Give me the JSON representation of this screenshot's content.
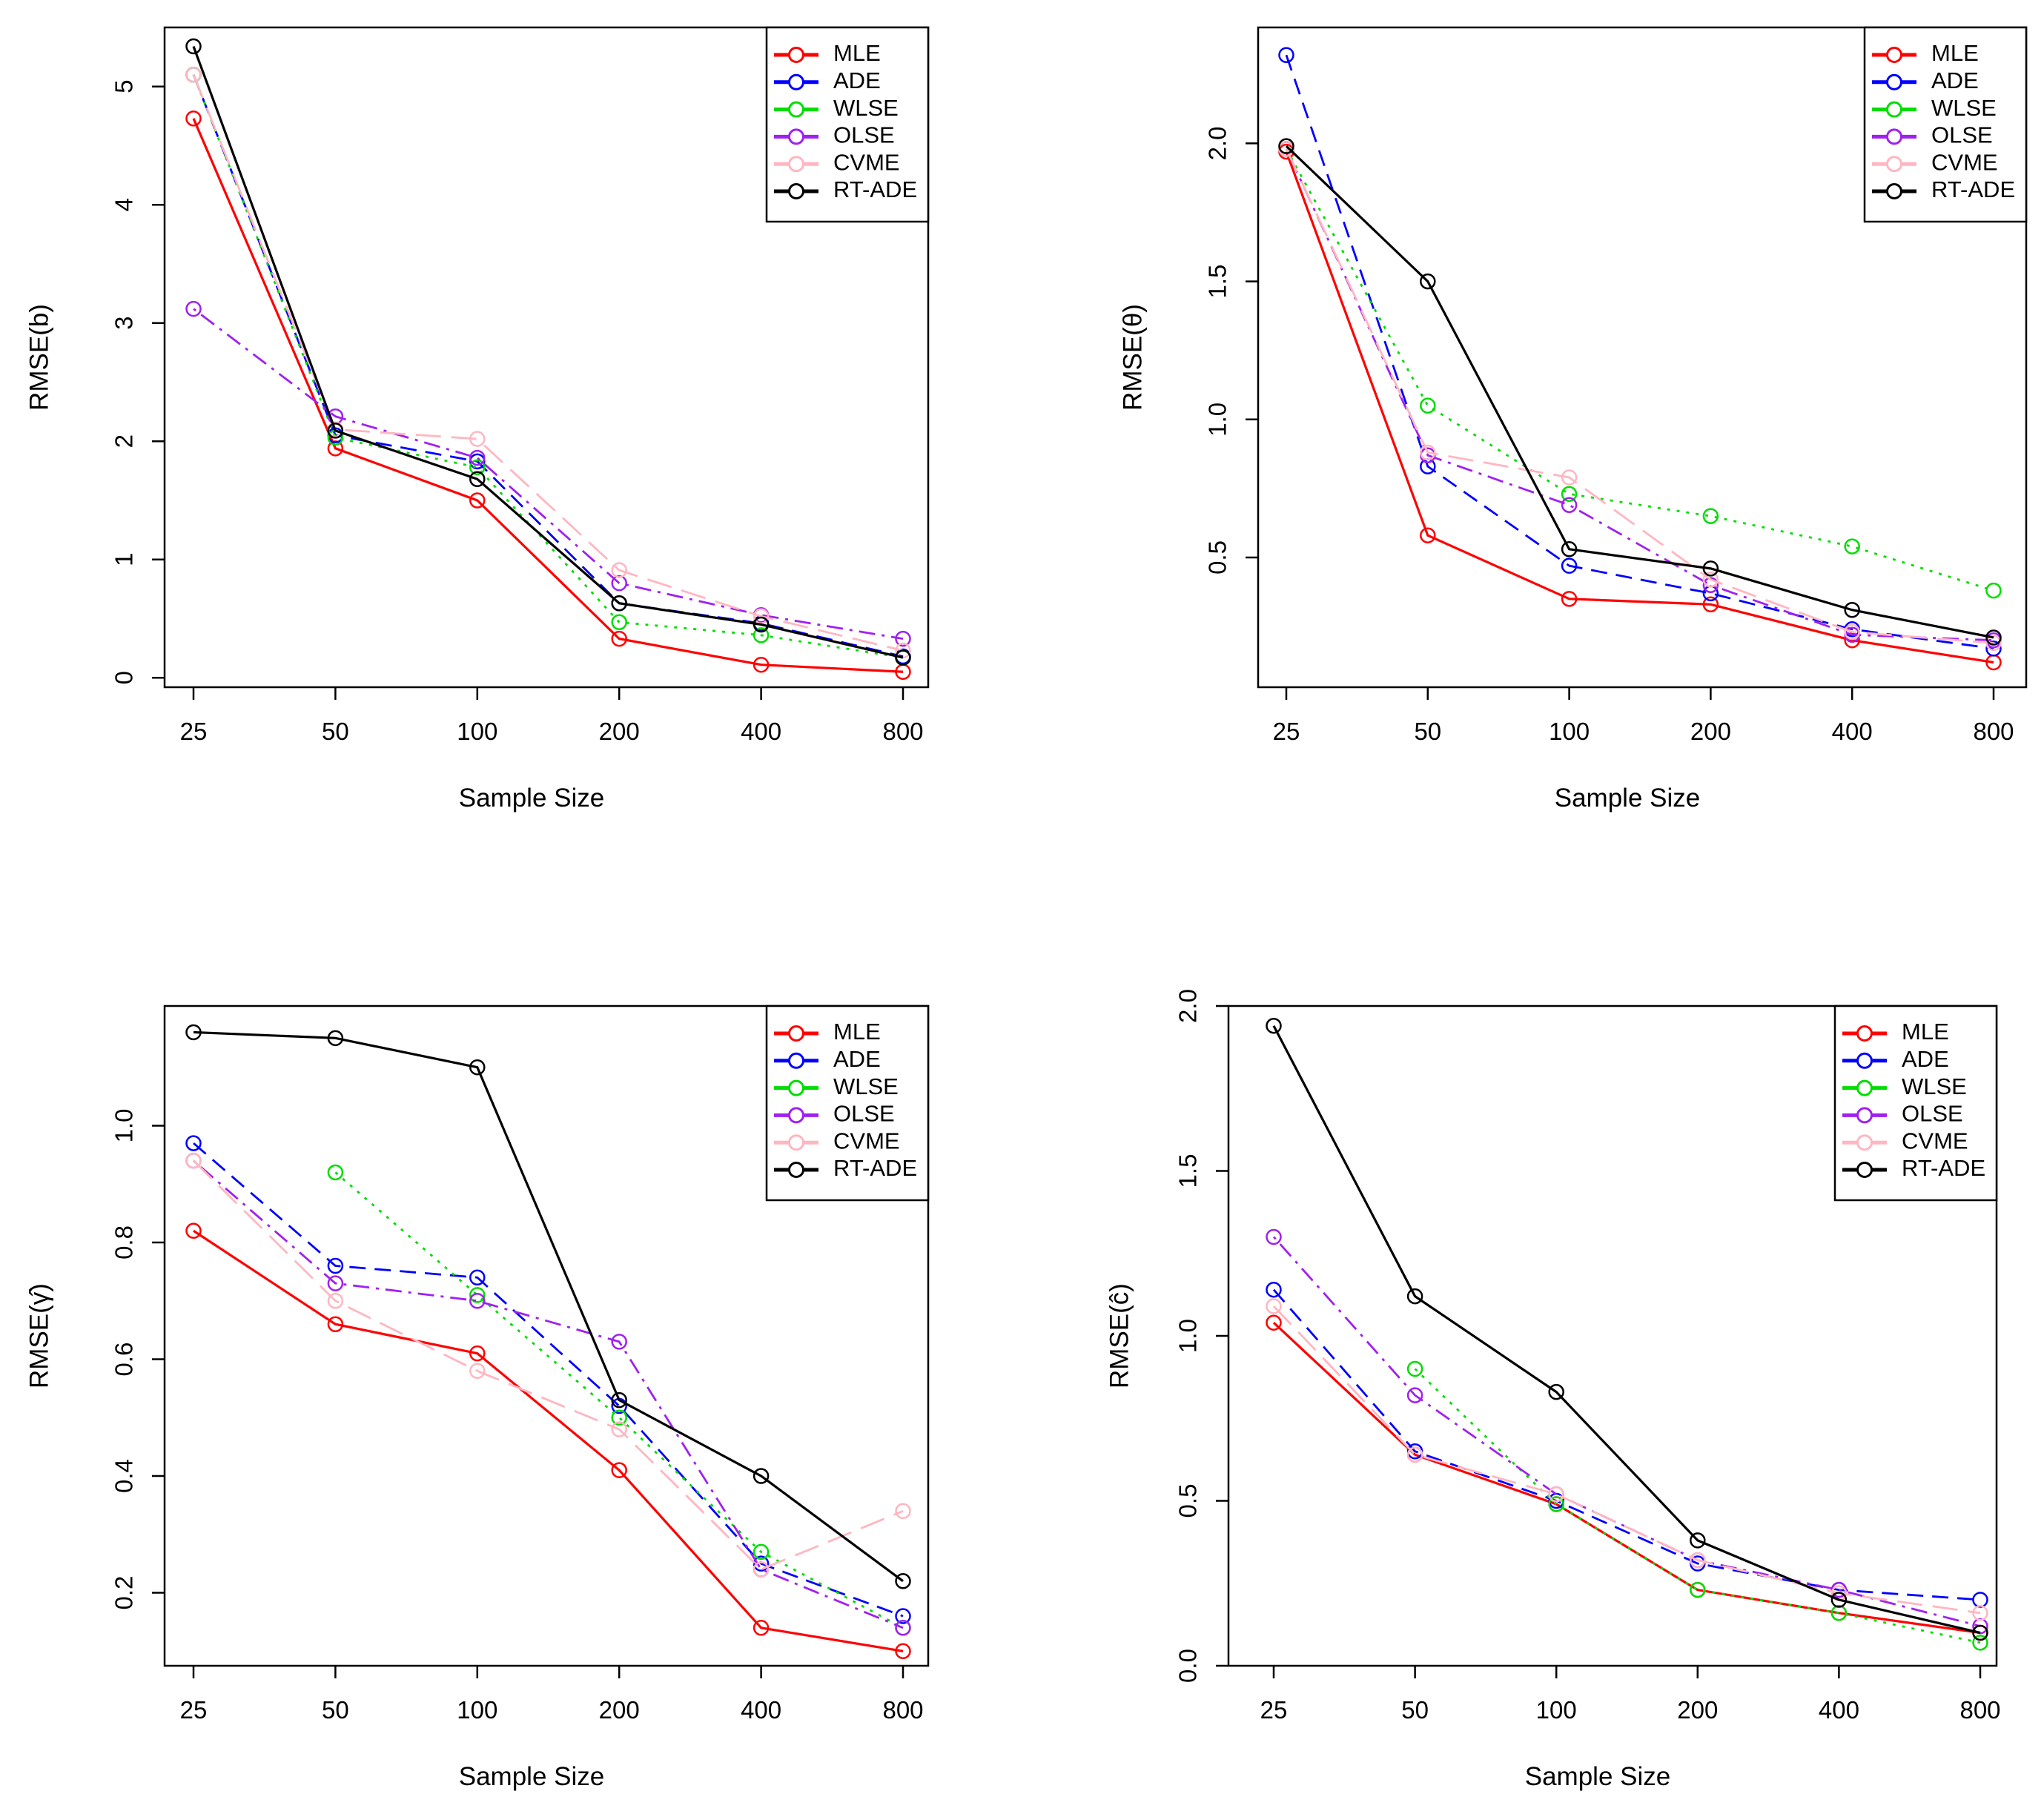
{
  "chart_data": [
    {
      "type": "line",
      "title": "",
      "xlabel": "Sample Size",
      "ylabel": "RMSE(b)",
      "categories": [
        "25",
        "50",
        "100",
        "200",
        "400",
        "800"
      ],
      "ylim": [
        -0.08,
        5.5
      ],
      "yticks": [
        "0",
        "1",
        "2",
        "3",
        "4",
        "5"
      ],
      "ytick_values": [
        0,
        1,
        2,
        3,
        4,
        5
      ],
      "legend_position": "top-right",
      "series": [
        {
          "name": "MLE",
          "color": "#ff0000",
          "dash": "solid",
          "values": [
            4.73,
            1.94,
            1.5,
            0.33,
            0.11,
            0.05
          ]
        },
        {
          "name": "ADE",
          "color": "#0000ff",
          "dash": "dashed",
          "values": [
            5.1,
            2.05,
            1.83,
            0.63,
            0.46,
            0.18
          ]
        },
        {
          "name": "WLSE",
          "color": "#00dd00",
          "dash": "dotted",
          "values": [
            5.1,
            2.03,
            1.78,
            0.47,
            0.36,
            0.17
          ]
        },
        {
          "name": "OLSE",
          "color": "#a020f0",
          "dash": "dotdash",
          "values": [
            3.12,
            2.21,
            1.86,
            0.8,
            0.53,
            0.33
          ]
        },
        {
          "name": "CVME",
          "color": "#ffb6c1",
          "dash": "longdash",
          "values": [
            5.1,
            2.1,
            2.02,
            0.91,
            0.52,
            0.23
          ]
        },
        {
          "name": "RT-ADE",
          "color": "#000000",
          "dash": "solid",
          "values": [
            5.34,
            2.09,
            1.68,
            0.63,
            0.45,
            0.17
          ]
        }
      ]
    },
    {
      "type": "line",
      "title": "",
      "xlabel": "Sample Size",
      "ylabel": "RMSE(θ)",
      "categories": [
        "25",
        "50",
        "100",
        "200",
        "400",
        "800"
      ],
      "ylim": [
        0.03,
        2.42
      ],
      "yticks": [
        "0.5",
        "1.0",
        "1.5",
        "2.0"
      ],
      "ytick_values": [
        0.5,
        1.0,
        1.5,
        2.0
      ],
      "legend_position": "top-right",
      "series": [
        {
          "name": "MLE",
          "color": "#ff0000",
          "dash": "solid",
          "values": [
            1.97,
            0.58,
            0.35,
            0.33,
            0.2,
            0.12
          ]
        },
        {
          "name": "ADE",
          "color": "#0000ff",
          "dash": "dashed",
          "values": [
            2.32,
            0.83,
            0.47,
            0.37,
            0.24,
            0.17
          ]
        },
        {
          "name": "WLSE",
          "color": "#00dd00",
          "dash": "dotted",
          "values": [
            1.98,
            1.05,
            0.73,
            0.65,
            0.54,
            0.38
          ]
        },
        {
          "name": "OLSE",
          "color": "#a020f0",
          "dash": "dotdash",
          "values": [
            1.98,
            0.87,
            0.69,
            0.4,
            0.22,
            0.2
          ]
        },
        {
          "name": "CVME",
          "color": "#ffb6c1",
          "dash": "longdash",
          "values": [
            1.98,
            0.88,
            0.79,
            0.42,
            0.23,
            0.19
          ]
        },
        {
          "name": "RT-ADE",
          "color": "#000000",
          "dash": "solid",
          "values": [
            1.99,
            1.5,
            0.53,
            0.46,
            0.31,
            0.21
          ]
        }
      ]
    },
    {
      "type": "line",
      "title": "",
      "xlabel": "Sample Size",
      "ylabel": "RMSE(γ̂)",
      "categories": [
        "25",
        "50",
        "100",
        "200",
        "400",
        "800"
      ],
      "ylim": [
        0.075,
        1.205
      ],
      "yticks": [
        "0.2",
        "0.4",
        "0.6",
        "0.8",
        "1.0"
      ],
      "ytick_values": [
        0.2,
        0.4,
        0.6,
        0.8,
        1.0
      ],
      "legend_position": "top-right",
      "series": [
        {
          "name": "MLE",
          "color": "#ff0000",
          "dash": "solid",
          "values": [
            0.82,
            0.66,
            0.61,
            0.41,
            0.14,
            0.1
          ]
        },
        {
          "name": "ADE",
          "color": "#0000ff",
          "dash": "dashed",
          "values": [
            0.97,
            0.76,
            0.74,
            0.52,
            0.25,
            0.16
          ]
        },
        {
          "name": "WLSE",
          "color": "#00dd00",
          "dash": "dotted",
          "values": [
            null,
            0.92,
            0.71,
            0.5,
            0.27,
            0.14
          ]
        },
        {
          "name": "OLSE",
          "color": "#a020f0",
          "dash": "dotdash",
          "values": [
            0.94,
            0.73,
            0.7,
            0.63,
            0.24,
            0.14
          ]
        },
        {
          "name": "CVME",
          "color": "#ffb6c1",
          "dash": "longdash",
          "values": [
            0.94,
            0.7,
            0.58,
            0.48,
            0.24,
            0.34
          ]
        },
        {
          "name": "RT-ADE",
          "color": "#000000",
          "dash": "solid",
          "values": [
            1.16,
            1.15,
            1.1,
            0.53,
            0.4,
            0.22
          ]
        }
      ]
    },
    {
      "type": "line",
      "title": "",
      "xlabel": "Sample Size",
      "ylabel": "RMSE(ĉ)",
      "categories": [
        "25",
        "50",
        "100",
        "200",
        "400",
        "800"
      ],
      "ylim": [
        0.0,
        2.0
      ],
      "yticks": [
        "0.0",
        "0.5",
        "1.0",
        "1.5",
        "2.0"
      ],
      "ytick_values": [
        0.0,
        0.5,
        1.0,
        1.5,
        2.0
      ],
      "legend_position": "top-right",
      "series": [
        {
          "name": "MLE",
          "color": "#ff0000",
          "dash": "solid",
          "values": [
            1.04,
            0.64,
            0.49,
            0.23,
            0.16,
            0.1
          ]
        },
        {
          "name": "ADE",
          "color": "#0000ff",
          "dash": "dashed",
          "values": [
            1.14,
            0.65,
            0.5,
            0.31,
            0.23,
            0.2
          ]
        },
        {
          "name": "WLSE",
          "color": "#00dd00",
          "dash": "dotted",
          "values": [
            null,
            0.9,
            0.49,
            0.23,
            0.16,
            0.07
          ]
        },
        {
          "name": "OLSE",
          "color": "#a020f0",
          "dash": "dotdash",
          "values": [
            1.3,
            0.82,
            0.52,
            0.32,
            0.23,
            0.12
          ]
        },
        {
          "name": "CVME",
          "color": "#ffb6c1",
          "dash": "longdash",
          "values": [
            1.09,
            0.64,
            0.52,
            0.32,
            0.22,
            0.16
          ]
        },
        {
          "name": "RT-ADE",
          "color": "#000000",
          "dash": "solid",
          "values": [
            1.94,
            1.12,
            0.83,
            0.38,
            0.2,
            0.1
          ]
        }
      ]
    }
  ]
}
